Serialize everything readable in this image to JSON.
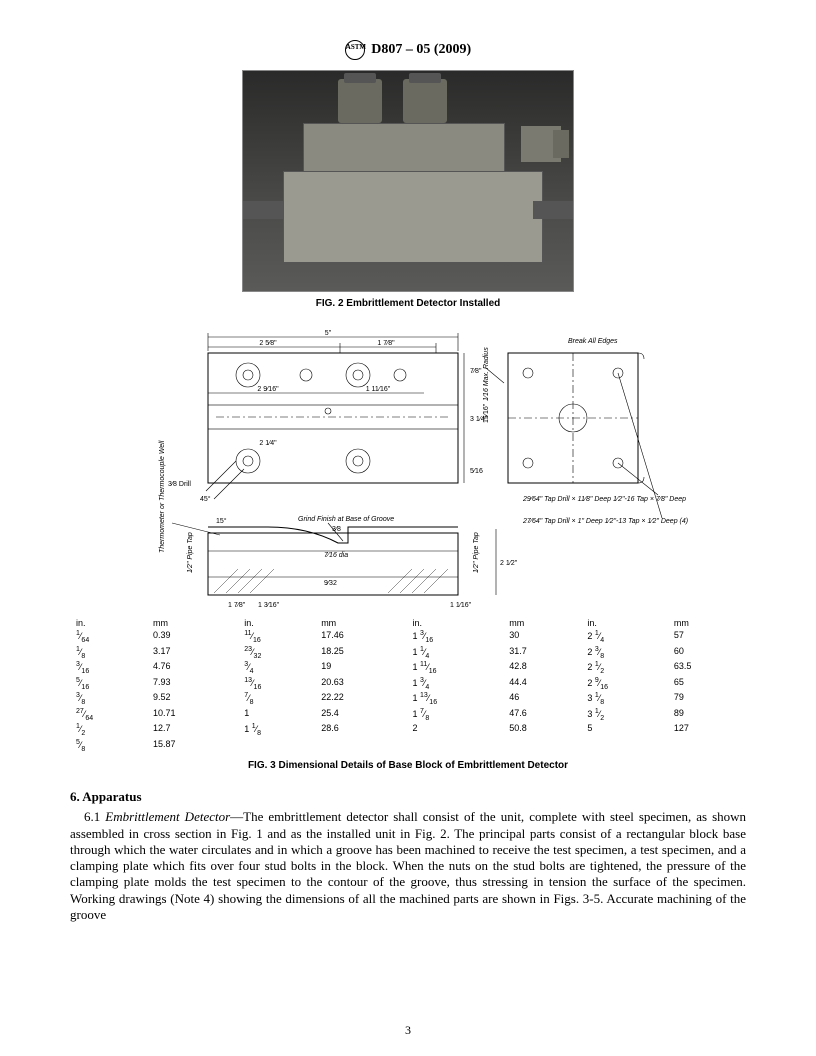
{
  "header": {
    "logo_text": "ASTM",
    "standard": "D807 – 05 (2009)"
  },
  "fig2": {
    "caption": "FIG. 2 Embrittlement Detector Installed"
  },
  "fig3": {
    "caption": "FIG. 3 Dimensional Details of Base Block of Embrittlement Detector",
    "drawing_notes": {
      "break_edges": "Break All Edges",
      "max_radius": "1⁄16 Max. Radius",
      "grind": "Grind Finish at Base of Groove",
      "thermo": "Thermometer or Thermocouple Well",
      "pipe_tap_a": "1⁄2\" Pipe Tap",
      "pipe_tap_b": "1⁄2\" Pipe Tap",
      "drill38": "3⁄8 Drill",
      "tap1": "29⁄64\" Tap Drill × 11⁄8\" Deep\n1⁄2\"-16 Tap × 7⁄8\" Deep (4 Holes)",
      "tap2": "27⁄64\" Tap Drill × 1\" Deep\n1⁄2\"-13 Tap × 1⁄2\" Deep (4)",
      "dim5": "5\"",
      "dim2_5_8": "2 5⁄8\"",
      "dim1_7_8": "1 7⁄8\"",
      "dim2_9_16": "2 9⁄16\"",
      "dim1_11_16": "1 11⁄16\"",
      "dim2_1_4": "2 1⁄4\"",
      "dim3_8": "3⁄8",
      "dim7_16dia": "7⁄16 dia",
      "dim2_1_2": "2 1⁄2\"",
      "dim45": "45°",
      "dim15": "15°",
      "dim9_32": "9⁄32",
      "dim1_16": "1⁄16\"",
      "dim1_1_16": "1 1⁄16\"",
      "dim3_1_4": "3 1⁄4\"",
      "dim7_8": "7⁄8\"",
      "dim5_16": "5⁄16",
      "dim15_16": "15⁄16\""
    },
    "svg_style": {
      "stroke": "#000000",
      "stroke_thin": 0.6,
      "stroke_med": 1.0,
      "background": "#ffffff",
      "font_size": 7
    }
  },
  "dim_table": {
    "headers": [
      "in.",
      "mm",
      "in.",
      "mm",
      "in.",
      "mm",
      "in.",
      "mm"
    ],
    "rows": [
      [
        "1⁄64",
        "0.39",
        "11⁄16",
        "17.46",
        "1 3⁄16",
        "30",
        "2 1⁄4",
        "57"
      ],
      [
        "1⁄8",
        "3.17",
        "23⁄32",
        "18.25",
        "1 1⁄4",
        "31.7",
        "2 3⁄8",
        "60"
      ],
      [
        "3⁄16",
        "4.76",
        "3⁄4",
        "19",
        "1 11⁄16",
        "42.8",
        "2 1⁄2",
        "63.5"
      ],
      [
        "5⁄16",
        "7.93",
        "13⁄16",
        "20.63",
        "1 3⁄4",
        "44.4",
        "2 9⁄16",
        "65"
      ],
      [
        "3⁄8",
        "9.52",
        "7⁄8",
        "22.22",
        "1 13⁄16",
        "46",
        "3 1⁄8",
        "79"
      ],
      [
        "27⁄64",
        "10.71",
        "1",
        "25.4",
        "1 7⁄8",
        "47.6",
        "3 1⁄2",
        "89"
      ],
      [
        "1⁄2",
        "12.7",
        "1 1⁄8",
        "28.6",
        "2",
        "50.8",
        "5",
        "127"
      ],
      [
        "5⁄8",
        "15.87",
        "",
        "",
        "",
        "",
        "",
        ""
      ]
    ]
  },
  "section6": {
    "heading": "6.  Apparatus",
    "para_lead": "6.1 ",
    "para_term": "Embrittlement Detector",
    "para_body": "—The embrittlement detector shall consist of the unit, complete with steel specimen, as shown assembled in cross section in Fig. 1 and as the installed unit in Fig. 2. The principal parts consist of a rectangular block base through which the water circulates and in which a groove has been machined to receive the test specimen, a test specimen, and a clamping plate which fits over four stud bolts in the block. When the nuts on the stud bolts are tightened, the pressure of the clamping plate molds the test specimen to the contour of the groove, thus stressing in tension the surface of the specimen. Working drawings (Note 4) showing the dimensions of all the machined parts are shown in Figs. 3-5. Accurate machining of the groove"
  },
  "page_number": "3"
}
